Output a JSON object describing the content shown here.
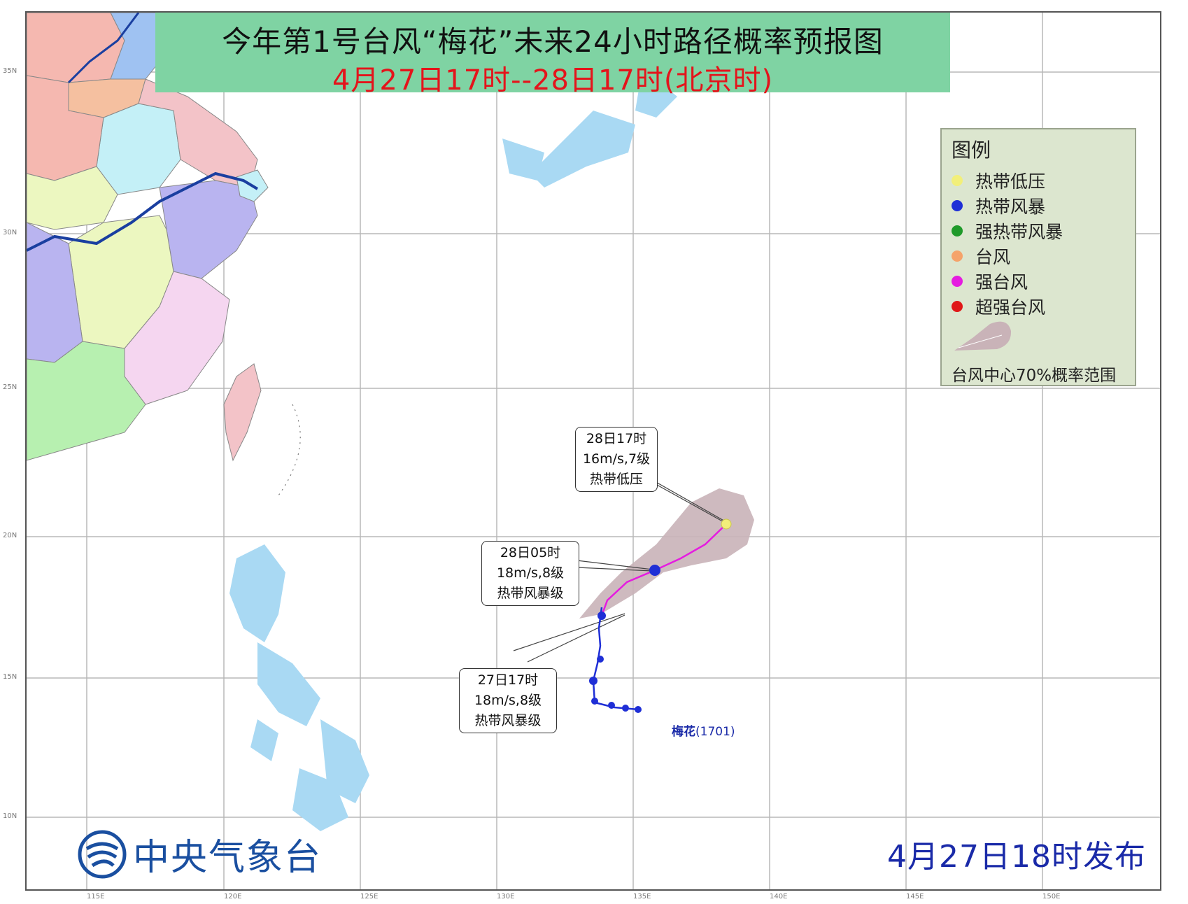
{
  "title": {
    "main": "今年第1号台风“梅花”未来24小时路径概率预报图",
    "period": "4月27日17时--28日17时(北京时)"
  },
  "legend": {
    "title": "图例",
    "items": [
      {
        "label": "热带低压",
        "color": "#f2ef7a"
      },
      {
        "label": "热带风暴",
        "color": "#1f2fd6"
      },
      {
        "label": "强热带风暴",
        "color": "#1f9a2a"
      },
      {
        "label": "台风",
        "color": "#f5a36a"
      },
      {
        "label": "强台风",
        "color": "#e51ce0"
      },
      {
        "label": "超强台风",
        "color": "#e01818"
      }
    ],
    "cone_label": "台风中心70%概率范围",
    "cone_color": "#c9b3b8"
  },
  "callouts": {
    "c28_17": {
      "line1": "28日17时",
      "line2": "16m/s,7级",
      "line3": "热带低压"
    },
    "c28_05": {
      "line1": "28日05时",
      "line2": "18m/s,8级",
      "line3": "热带风暴级"
    },
    "c27_17": {
      "line1": "27日17时",
      "line2": "18m/s,8级",
      "line3": "热带风暴级"
    }
  },
  "storm": {
    "name": "梅花",
    "code": "(1701)",
    "track_color": "#e51ce0"
  },
  "footer": {
    "agency": "中央气象台",
    "issue_time": "4月27日18时发布"
  },
  "grid": {
    "lat_labels": [
      "35N",
      "30N",
      "25N",
      "20N",
      "15N",
      "10N"
    ],
    "lon_labels": [
      "115E",
      "120E",
      "125E",
      "130E",
      "135E",
      "140E",
      "145E",
      "150E"
    ]
  },
  "colors": {
    "sea": "#ffffff",
    "water": "#a9d9f3",
    "grid": "#b8b8b8",
    "river": "#1a3fa0"
  }
}
